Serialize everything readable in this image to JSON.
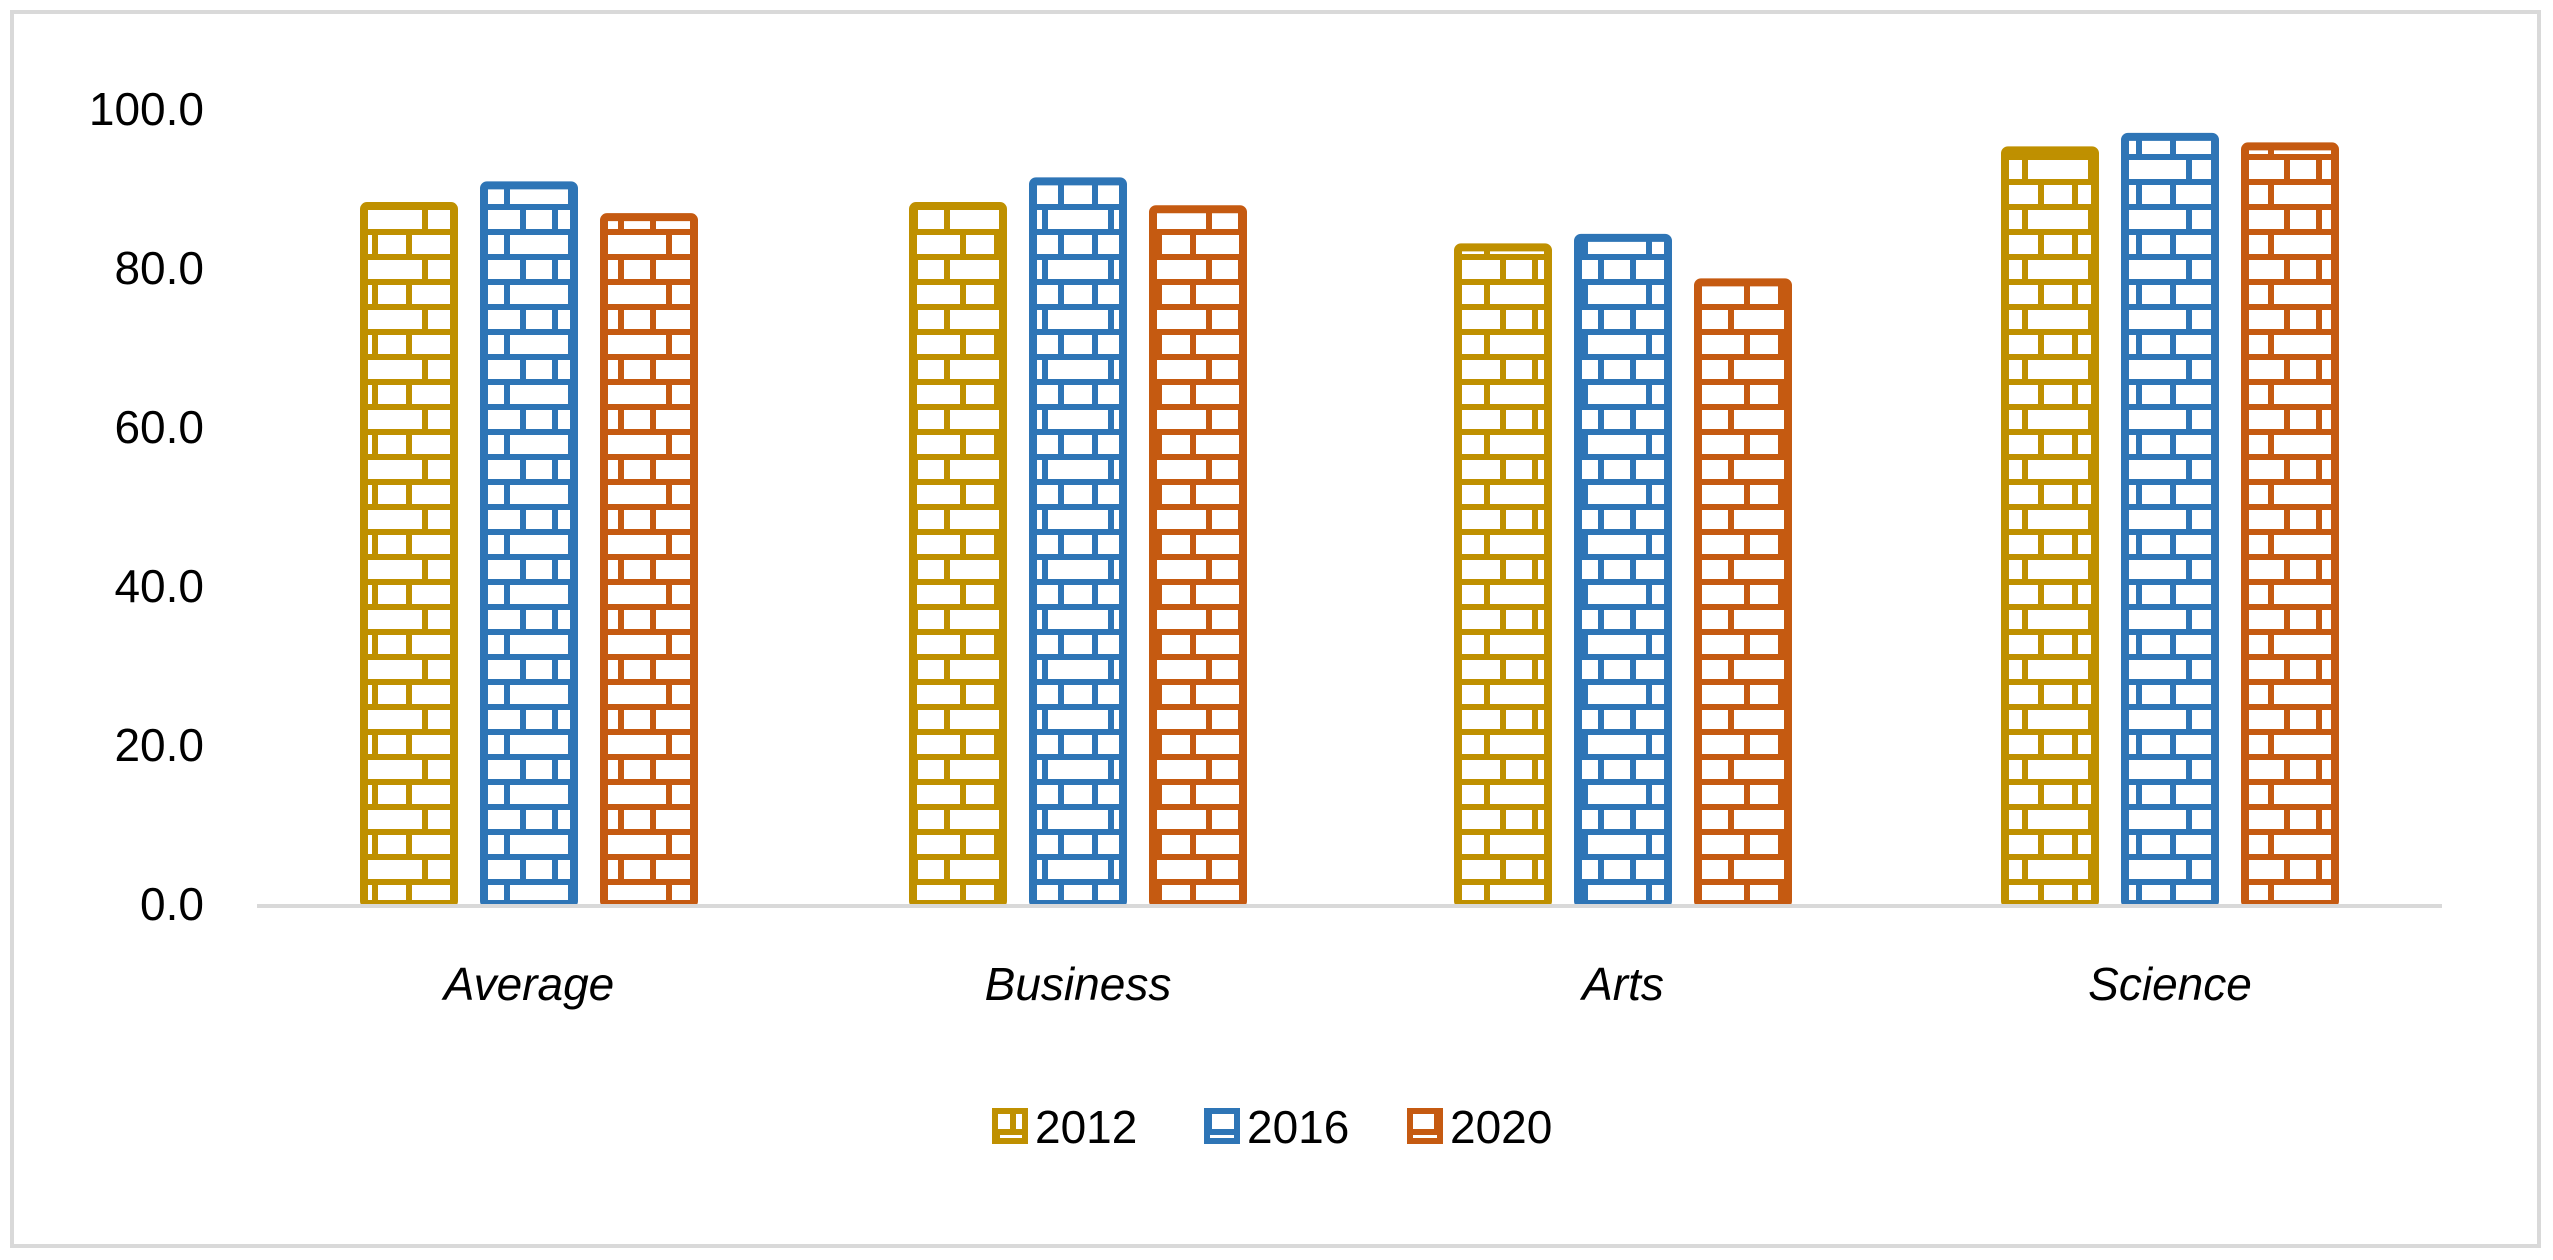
{
  "chart_data": {
    "type": "bar",
    "title": "",
    "xlabel": "",
    "ylabel": "",
    "categories": [
      "Average",
      "Business",
      "Arts",
      "Science"
    ],
    "series": [
      {
        "name": "2012",
        "color": "#BF9000",
        "values": [
          88.3,
          88.3,
          83.1,
          95.3
        ]
      },
      {
        "name": "2016",
        "color": "#2E75B6",
        "values": [
          90.9,
          91.4,
          84.3,
          97.0
        ]
      },
      {
        "name": "2020",
        "color": "#C55A11",
        "values": [
          86.9,
          87.9,
          78.7,
          95.8
        ]
      }
    ],
    "ylim": [
      0,
      100
    ],
    "yticks": [
      "0.0",
      "20.0",
      "40.0",
      "60.0",
      "80.0",
      "100.0"
    ],
    "grid": false,
    "legend": "bottom",
    "pattern": "brick"
  }
}
